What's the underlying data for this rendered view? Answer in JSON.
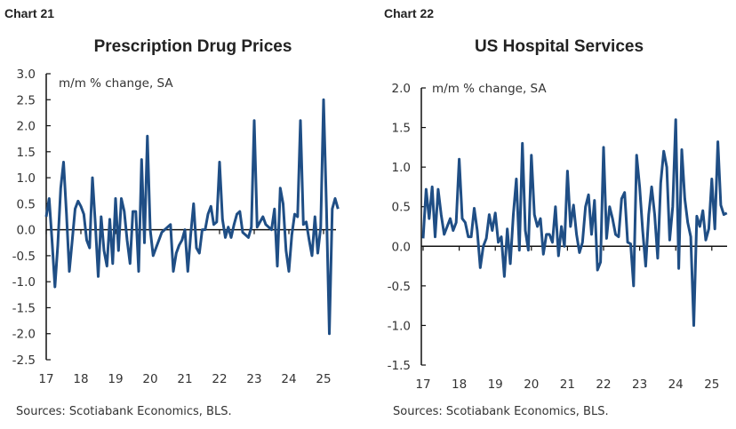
{
  "line_color": "#1f4e85",
  "chart_data": [
    {
      "chart_label": "Chart 21",
      "type": "line",
      "title": "Prescription Drug Prices",
      "ylabel": "m/m % change, SA",
      "source": "Sources: Scotiabank Economics, BLS.",
      "ylim": [
        -2.5,
        3.0
      ],
      "yticks": [
        "3.0",
        "2.5",
        "2.0",
        "1.5",
        "1.0",
        "0.5",
        "0.0",
        "-0.5",
        "-1.0",
        "-1.5",
        "-2.0",
        "-2.5"
      ],
      "xticks": [
        "17",
        "18",
        "19",
        "20",
        "21",
        "22",
        "23",
        "24",
        "25"
      ],
      "x_start": "2017-01",
      "frequency": "monthly",
      "values": [
        0.25,
        0.6,
        -0.2,
        -1.1,
        -0.3,
        0.8,
        1.3,
        0.3,
        -0.8,
        -0.2,
        0.4,
        0.55,
        0.45,
        0.3,
        -0.2,
        -0.35,
        1.0,
        0.1,
        -0.9,
        0.25,
        -0.4,
        -0.7,
        0.2,
        -0.65,
        0.6,
        -0.4,
        0.6,
        0.35,
        -0.2,
        -0.65,
        0.35,
        0.35,
        -0.8,
        1.35,
        -0.25,
        1.8,
        0.0,
        -0.5,
        -0.35,
        -0.2,
        -0.05,
        0.0,
        0.05,
        0.1,
        -0.8,
        -0.45,
        -0.3,
        -0.2,
        0.0,
        -0.8,
        -0.1,
        0.5,
        -0.35,
        -0.45,
        0.0,
        0.0,
        0.3,
        0.45,
        0.1,
        0.15,
        1.3,
        0.2,
        -0.15,
        0.05,
        -0.15,
        0.1,
        0.3,
        0.35,
        -0.05,
        -0.1,
        -0.15,
        0.05,
        2.1,
        0.05,
        0.15,
        0.25,
        0.1,
        0.05,
        0.0,
        0.4,
        -0.7,
        0.8,
        0.5,
        -0.4,
        -0.8,
        -0.1,
        0.3,
        0.25,
        2.1,
        0.1,
        0.15,
        -0.2,
        -0.5,
        0.25,
        -0.45,
        0.05,
        2.5,
        0.4,
        -2.0,
        0.4,
        0.6,
        0.4
      ]
    },
    {
      "chart_label": "Chart 22",
      "type": "line",
      "title": "US Hospital Services",
      "ylabel": "m/m % change, SA",
      "source": "Sources: Scotiabank Economics, BLS.",
      "ylim": [
        -1.5,
        2.0
      ],
      "yticks": [
        "2.0",
        "1.5",
        "1.0",
        "0.5",
        "0.0",
        "-0.5",
        "-1.0",
        "-1.5"
      ],
      "xticks": [
        "17",
        "18",
        "19",
        "20",
        "21",
        "22",
        "23",
        "24",
        "25"
      ],
      "x_start": "2017-01",
      "frequency": "monthly",
      "values": [
        0.1,
        0.72,
        0.35,
        0.75,
        0.12,
        0.72,
        0.4,
        0.15,
        0.25,
        0.35,
        0.2,
        0.3,
        1.1,
        0.35,
        0.3,
        0.12,
        0.12,
        0.48,
        0.2,
        -0.27,
        0.0,
        0.1,
        0.4,
        0.2,
        0.42,
        0.05,
        0.12,
        -0.38,
        0.22,
        -0.22,
        0.4,
        0.85,
        -0.05,
        1.3,
        0.2,
        -0.05,
        1.15,
        0.4,
        0.25,
        0.35,
        -0.1,
        0.15,
        0.15,
        0.05,
        0.5,
        -0.12,
        0.25,
        0.0,
        0.95,
        0.25,
        0.52,
        0.15,
        -0.08,
        0.05,
        0.5,
        0.65,
        0.15,
        0.58,
        -0.3,
        -0.2,
        1.25,
        0.1,
        0.5,
        0.35,
        0.15,
        0.12,
        0.6,
        0.68,
        0.05,
        0.03,
        -0.5,
        1.15,
        0.75,
        0.2,
        -0.25,
        0.4,
        0.75,
        0.4,
        -0.15,
        0.8,
        1.2,
        1.0,
        0.08,
        0.5,
        1.6,
        -0.28,
        1.22,
        0.6,
        0.3,
        0.12,
        -1.0,
        0.38,
        0.25,
        0.45,
        0.08,
        0.22,
        0.85,
        0.22,
        1.32,
        0.52,
        0.4,
        0.42
      ]
    }
  ]
}
